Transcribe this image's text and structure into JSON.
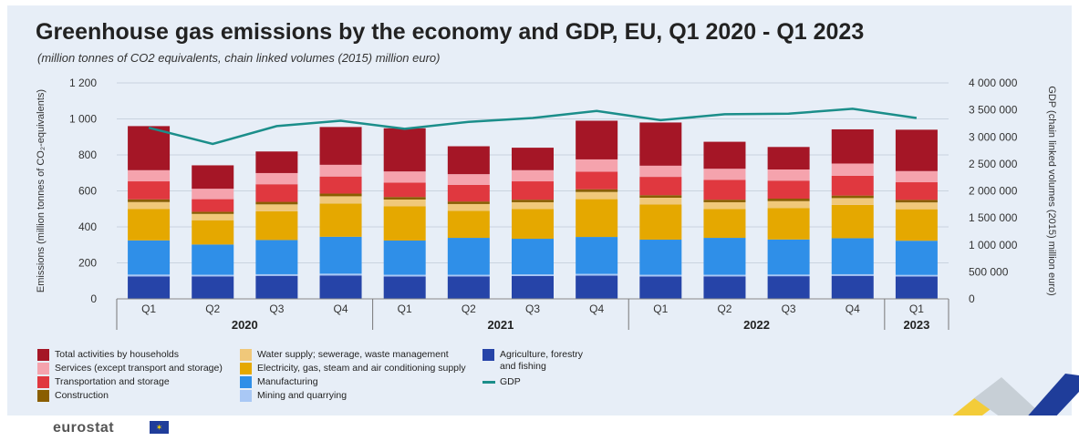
{
  "page": {
    "title": "Greenhouse gas emissions by the economy and GDP, EU, Q1 2020 - Q1 2023",
    "subtitle": "(million tonnes of CO2 equivalents, chain linked volumes (2015) million euro)",
    "logo_text": "eurostat"
  },
  "chart_data": {
    "type": "bar",
    "stacked": true,
    "categories": [
      "Q1",
      "Q2",
      "Q3",
      "Q4",
      "Q1",
      "Q2",
      "Q3",
      "Q4",
      "Q1",
      "Q2",
      "Q3",
      "Q4",
      "Q1"
    ],
    "year_groups": [
      {
        "label": "2020",
        "start": 0,
        "end": 3
      },
      {
        "label": "2021",
        "start": 4,
        "end": 7
      },
      {
        "label": "2022",
        "start": 8,
        "end": 11
      },
      {
        "label": "2023",
        "start": 12,
        "end": 12
      }
    ],
    "ylabel": "Emissions (million tonnes of CO₂-equivalents)",
    "y2label": "GDP (chain linked volumes (2015) million euro)",
    "ylim": [
      0,
      1200
    ],
    "y_ticks": [
      0,
      200,
      400,
      600,
      800,
      1000,
      1200
    ],
    "y_tick_labels": [
      "0",
      "200",
      "400",
      "600",
      "800",
      "1 000",
      "1 200"
    ],
    "y2lim": [
      0,
      4000000
    ],
    "y2_ticks": [
      0,
      500000,
      1000000,
      1500000,
      2000000,
      2500000,
      3000000,
      3500000,
      4000000
    ],
    "y2_tick_labels": [
      "0",
      "500 000",
      "1 000 000",
      "1 500 000",
      "2 000 000",
      "2 500 000",
      "3 000 000",
      "3 500 000",
      "4 000 000"
    ],
    "series": [
      {
        "name": "Agriculture, forestry and fishing",
        "color": "#2644a8",
        "values": [
          125,
          125,
          128,
          130,
          124,
          125,
          127,
          129,
          124,
          125,
          126,
          128,
          124
        ]
      },
      {
        "name": "Mining and quarrying",
        "color": "#a9c8f5",
        "values": [
          10,
          9,
          9,
          10,
          10,
          9,
          9,
          10,
          10,
          9,
          9,
          9,
          9
        ]
      },
      {
        "name": "Manufacturing",
        "color": "#2f8fe8",
        "values": [
          190,
          168,
          190,
          205,
          190,
          205,
          198,
          205,
          195,
          205,
          195,
          200,
          190
        ]
      },
      {
        "name": "Electricity, gas, steam and air conditioning supply",
        "color": "#e5a800",
        "values": [
          175,
          135,
          160,
          185,
          190,
          150,
          165,
          210,
          195,
          160,
          175,
          185,
          175
        ]
      },
      {
        "name": "Water supply; sewerage, waste management",
        "color": "#f0c87a",
        "values": [
          38,
          35,
          38,
          40,
          38,
          38,
          38,
          40,
          38,
          38,
          38,
          38,
          38
        ]
      },
      {
        "name": "Construction",
        "color": "#8a5e00",
        "values": [
          15,
          12,
          14,
          15,
          14,
          14,
          14,
          15,
          14,
          14,
          14,
          14,
          14
        ]
      },
      {
        "name": "Transportation and storage",
        "color": "#e0383f",
        "values": [
          100,
          70,
          98,
          95,
          80,
          92,
          102,
          98,
          102,
          110,
          100,
          110,
          98
        ]
      },
      {
        "name": "Services (except transport and storage)",
        "color": "#f5a3ad",
        "values": [
          62,
          58,
          62,
          65,
          62,
          60,
          62,
          68,
          62,
          62,
          62,
          68,
          62
        ]
      },
      {
        "name": "Total activities by households",
        "color": "#a51626",
        "values": [
          245,
          130,
          120,
          210,
          240,
          155,
          125,
          215,
          240,
          150,
          125,
          190,
          230
        ]
      }
    ],
    "line_series": {
      "name": "GDP",
      "color": "#1b8e8a",
      "axis": "right",
      "values": [
        3170000,
        2870000,
        3200000,
        3300000,
        3150000,
        3280000,
        3350000,
        3480000,
        3310000,
        3420000,
        3430000,
        3520000,
        3350000
      ]
    },
    "legend": [
      "Total activities by households",
      "Services (except transport and storage)",
      "Transportation and storage",
      "Construction",
      "Water supply; sewerage, waste management",
      "Electricity, gas, steam and air conditioning supply",
      "Manufacturing",
      "Mining and quarrying",
      "Agriculture, forestry and fishing",
      "GDP"
    ]
  }
}
